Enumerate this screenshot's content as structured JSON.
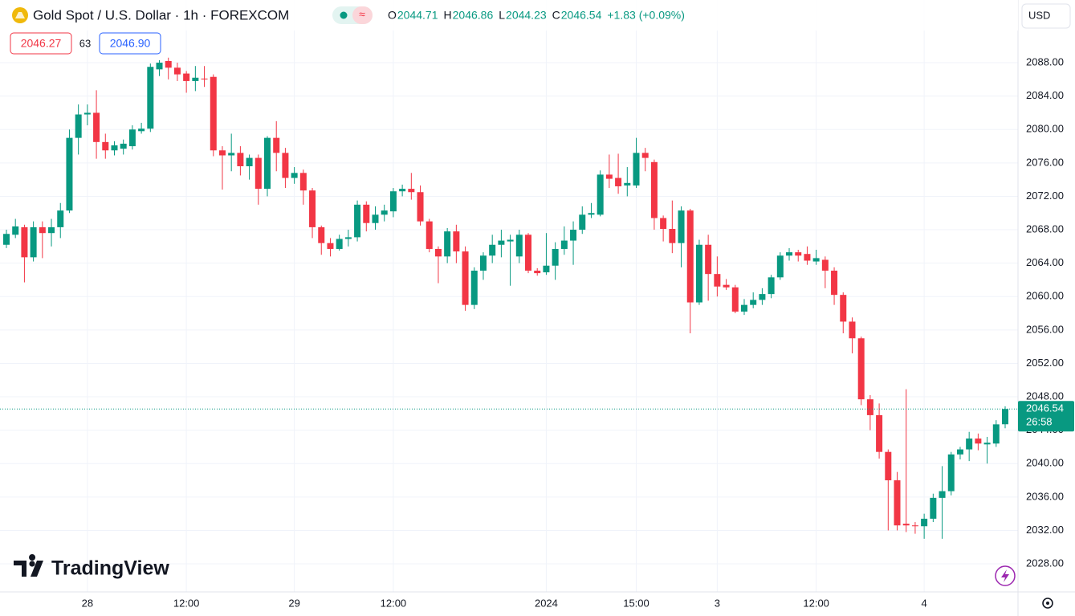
{
  "chart_data": {
    "type": "candlestick",
    "title": "Gold Spot / U.S. Dollar · 1h · FOREXCOM",
    "quote": [
      {
        "label": "O",
        "value": 2044.71
      },
      {
        "label": "H",
        "value": 2046.86
      },
      {
        "label": "L",
        "value": 2044.23
      },
      {
        "label": "C",
        "value": 2046.54
      }
    ],
    "change": "+1.83 (+0.09%)",
    "bid": 2046.27,
    "spread": 63,
    "ask": 2046.9,
    "ask_label": "2046.90",
    "currency": "USD",
    "countdown": "26:58",
    "brand": "TradingView",
    "up_color": "#089981",
    "down_color": "#f23645",
    "grid": true,
    "ylim": [
      2024.35,
      2091.85
    ],
    "yticks": [
      {
        "value": 2028,
        "label": "2028.00"
      },
      {
        "value": 2032,
        "label": "2032.00"
      },
      {
        "value": 2036,
        "label": "2036.00"
      },
      {
        "value": 2040,
        "label": "2040.00"
      },
      {
        "value": 2044,
        "label": "2044.00"
      },
      {
        "value": 2048,
        "label": "2048.00"
      },
      {
        "value": 2052,
        "label": "2052.00"
      },
      {
        "value": 2056,
        "label": "2056.00"
      },
      {
        "value": 2060,
        "label": "2060.00"
      },
      {
        "value": 2064,
        "label": "2064.00"
      },
      {
        "value": 2068,
        "label": "2068.00"
      },
      {
        "value": 2072,
        "label": "2072.00"
      },
      {
        "value": 2076,
        "label": "2076.00"
      },
      {
        "value": 2080,
        "label": "2080.00"
      },
      {
        "value": 2084,
        "label": "2084.00"
      },
      {
        "value": 2088,
        "label": "2088.00"
      }
    ],
    "categories": [
      null,
      null,
      null,
      null,
      null,
      null,
      null,
      null,
      null,
      "28",
      null,
      null,
      null,
      null,
      null,
      null,
      null,
      null,
      null,
      null,
      "12:00",
      null,
      null,
      null,
      null,
      null,
      null,
      null,
      null,
      null,
      null,
      null,
      "29",
      null,
      null,
      null,
      null,
      null,
      null,
      null,
      null,
      null,
      null,
      "12:00",
      null,
      null,
      null,
      null,
      null,
      null,
      null,
      null,
      null,
      null,
      null,
      null,
      null,
      null,
      null,
      null,
      "2024",
      null,
      null,
      null,
      null,
      null,
      null,
      null,
      null,
      null,
      "15:00",
      null,
      null,
      null,
      null,
      null,
      null,
      null,
      null,
      "3",
      null,
      null,
      null,
      null,
      null,
      null,
      null,
      null,
      null,
      null,
      "12:00",
      null,
      null,
      null,
      null,
      null,
      null,
      null,
      null,
      null,
      null,
      null,
      "4",
      null,
      null,
      null,
      null,
      null,
      null,
      null,
      null,
      null
    ],
    "open": [
      2066.2,
      2067.4,
      2068.3,
      2064.7,
      2068.3,
      2067.6,
      2068.3,
      2070.3,
      2079,
      2081.8,
      2082,
      2078.5,
      2077.5,
      2077.7,
      2078,
      2079.8,
      2080.1,
      2087.2,
      2088.2,
      2087.4,
      2086.7,
      2085.8,
      2086.1,
      2086.3,
      2077.5,
      2076.9,
      2077.2,
      2075.6,
      2076.6,
      2072.9,
      2079,
      2077.2,
      2074.2,
      2074.8,
      2072.7,
      2068.3,
      2066.4,
      2065.7,
      2066.9,
      2067.1,
      2071,
      2068.8,
      2069.8,
      2070.2,
      2072.6,
      2072.9,
      2072.5,
      2069,
      2065.7,
      2064.8,
      2067.8,
      2065.4,
      2059,
      2063.1,
      2064.9,
      2066.2,
      2066.6,
      2064.8,
      2067.4,
      2063.1,
      2062.9,
      2063.7,
      2065.7,
      2066.7,
      2068,
      2069.8,
      2069.8,
      2074.6,
      2074.2,
      2073.3,
      2073.3,
      2077.2,
      2076.1,
      2069.4,
      2068.1,
      2066.4,
      2070.3,
      2059.3,
      2066.2,
      2062.7,
      2061.4,
      2061.1,
      2058.2,
      2059,
      2059.6,
      2060.3,
      2062.3,
      2064.9,
      2065.3,
      2065.1,
      2064.2,
      2064.4,
      2063.1,
      2060.2,
      2057,
      2055,
      2047.7,
      2045.8,
      2041.4,
      2038,
      2032.8,
      2032.6,
      2032.5,
      2033.4,
      2035.9,
      2036.7,
      2041.1,
      2041.7,
      2043,
      2042.3,
      2042.4,
      2044.71
    ],
    "high": [
      2068,
      2069.3,
      2068.6,
      2069,
      2069,
      2069.3,
      2071.2,
      2080,
      2083,
      2083,
      2084.7,
      2079.5,
      2078.6,
      2078.8,
      2080.5,
      2080.8,
      2087.9,
      2088.3,
      2088.6,
      2088,
      2087,
      2087.6,
      2087.6,
      2086.6,
      2078,
      2079.5,
      2078,
      2077,
      2077,
      2079.2,
      2081,
      2077.8,
      2075.5,
      2075.2,
      2073,
      2068.5,
      2067,
      2067.4,
      2068,
      2071.5,
      2071.4,
      2070.8,
      2071,
      2073,
      2073.4,
      2074.8,
      2073.3,
      2069.3,
      2066,
      2068.2,
      2068.6,
      2066,
      2063.5,
      2065.3,
      2067.4,
      2068,
      2067.4,
      2068,
      2067.6,
      2063.4,
      2067.6,
      2066.5,
      2068.4,
      2069,
      2070.8,
      2071.2,
      2075.1,
      2077,
      2077.1,
      2075.5,
      2079,
      2077.8,
      2076.4,
      2069.7,
      2071.5,
      2070.8,
      2070.5,
      2066.8,
      2067.4,
      2064.8,
      2062.1,
      2061.4,
      2059.7,
      2060.5,
      2061,
      2062.6,
      2065.3,
      2065.8,
      2065.6,
      2066,
      2065.6,
      2064.8,
      2063.5,
      2060.5,
      2057.5,
      2055.2,
      2048.2,
      2047.2,
      2041.7,
      2039,
      2048.9,
      2033,
      2034,
      2036.4,
      2039.7,
      2041.4,
      2042,
      2043.8,
      2043.6,
      2043.2,
      2045.2,
      2046.86
    ],
    "low": [
      2065.8,
      2067,
      2061.7,
      2064.2,
      2064.6,
      2066,
      2067,
      2070,
      2077,
      2080.5,
      2076.5,
      2076.5,
      2076.9,
      2077,
      2077.6,
      2079.5,
      2079.7,
      2086.4,
      2086,
      2085.8,
      2084.4,
      2084.6,
      2085.1,
      2076.8,
      2072.8,
      2075,
      2074.5,
      2074,
      2071,
      2072,
      2075,
      2073,
      2073.5,
      2071,
      2067,
      2065,
      2064.8,
      2065.5,
      2066,
      2066.6,
      2067.8,
      2068,
      2069,
      2069.5,
      2072,
      2071.6,
      2068.5,
      2065.3,
      2061.6,
      2064,
      2064,
      2058.3,
      2058.5,
      2062,
      2064,
      2064.7,
      2061.3,
      2064,
      2062.8,
      2062.5,
      2062.6,
      2062,
      2065,
      2063.8,
      2067.5,
      2069.4,
      2069.6,
      2073,
      2072.3,
      2072,
      2073,
      2075,
      2068,
      2066.6,
      2065.2,
      2063.5,
      2055.6,
      2059,
      2059.5,
      2060,
      2060.8,
      2058,
      2057.8,
      2058.6,
      2059,
      2059.8,
      2062,
      2064.3,
      2064.2,
      2063.8,
      2063.8,
      2061,
      2059,
      2055.6,
      2053.2,
      2047,
      2044,
      2040.6,
      2032,
      2032,
      2031.8,
      2031.6,
      2031,
      2033,
      2031,
      2036.2,
      2040.5,
      2040.3,
      2041.6,
      2040,
      2042,
      2044.23
    ],
    "close": [
      2067.5,
      2068.4,
      2064.7,
      2068.3,
      2067.6,
      2068.3,
      2070.3,
      2079,
      2081.8,
      2082,
      2078.5,
      2077.5,
      2078.1,
      2078.3,
      2080,
      2080.1,
      2087.5,
      2088,
      2087.4,
      2086.6,
      2085.8,
      2086.2,
      2086,
      2077.5,
      2076.9,
      2077.2,
      2075.6,
      2076.6,
      2072.9,
      2079,
      2077.2,
      2074.2,
      2074.8,
      2072.7,
      2068.3,
      2066.4,
      2065.7,
      2066.9,
      2067.1,
      2071,
      2068.8,
      2069.8,
      2070.3,
      2072.6,
      2072.9,
      2072.5,
      2069,
      2065.7,
      2064.8,
      2067.8,
      2065.4,
      2059,
      2063.1,
      2064.9,
      2066.2,
      2066.7,
      2066.8,
      2067.4,
      2063.1,
      2062.8,
      2063.7,
      2065.7,
      2066.7,
      2068,
      2069.8,
      2070,
      2074.6,
      2074.1,
      2073.2,
      2073.6,
      2077.2,
      2076.6,
      2069.4,
      2068.1,
      2066.4,
      2070.3,
      2059.3,
      2066.2,
      2062.7,
      2061.2,
      2061.1,
      2058.2,
      2059,
      2059.6,
      2060.3,
      2062.3,
      2064.9,
      2065.3,
      2064.9,
      2064.3,
      2064.6,
      2063.1,
      2060.2,
      2057,
      2055,
      2047.7,
      2045.8,
      2041.4,
      2038,
      2032.6,
      2032.6,
      2032.5,
      2033.4,
      2035.9,
      2036.7,
      2041.1,
      2041.7,
      2043,
      2042.4,
      2042.5,
      2044.7,
      2046.54
    ]
  }
}
